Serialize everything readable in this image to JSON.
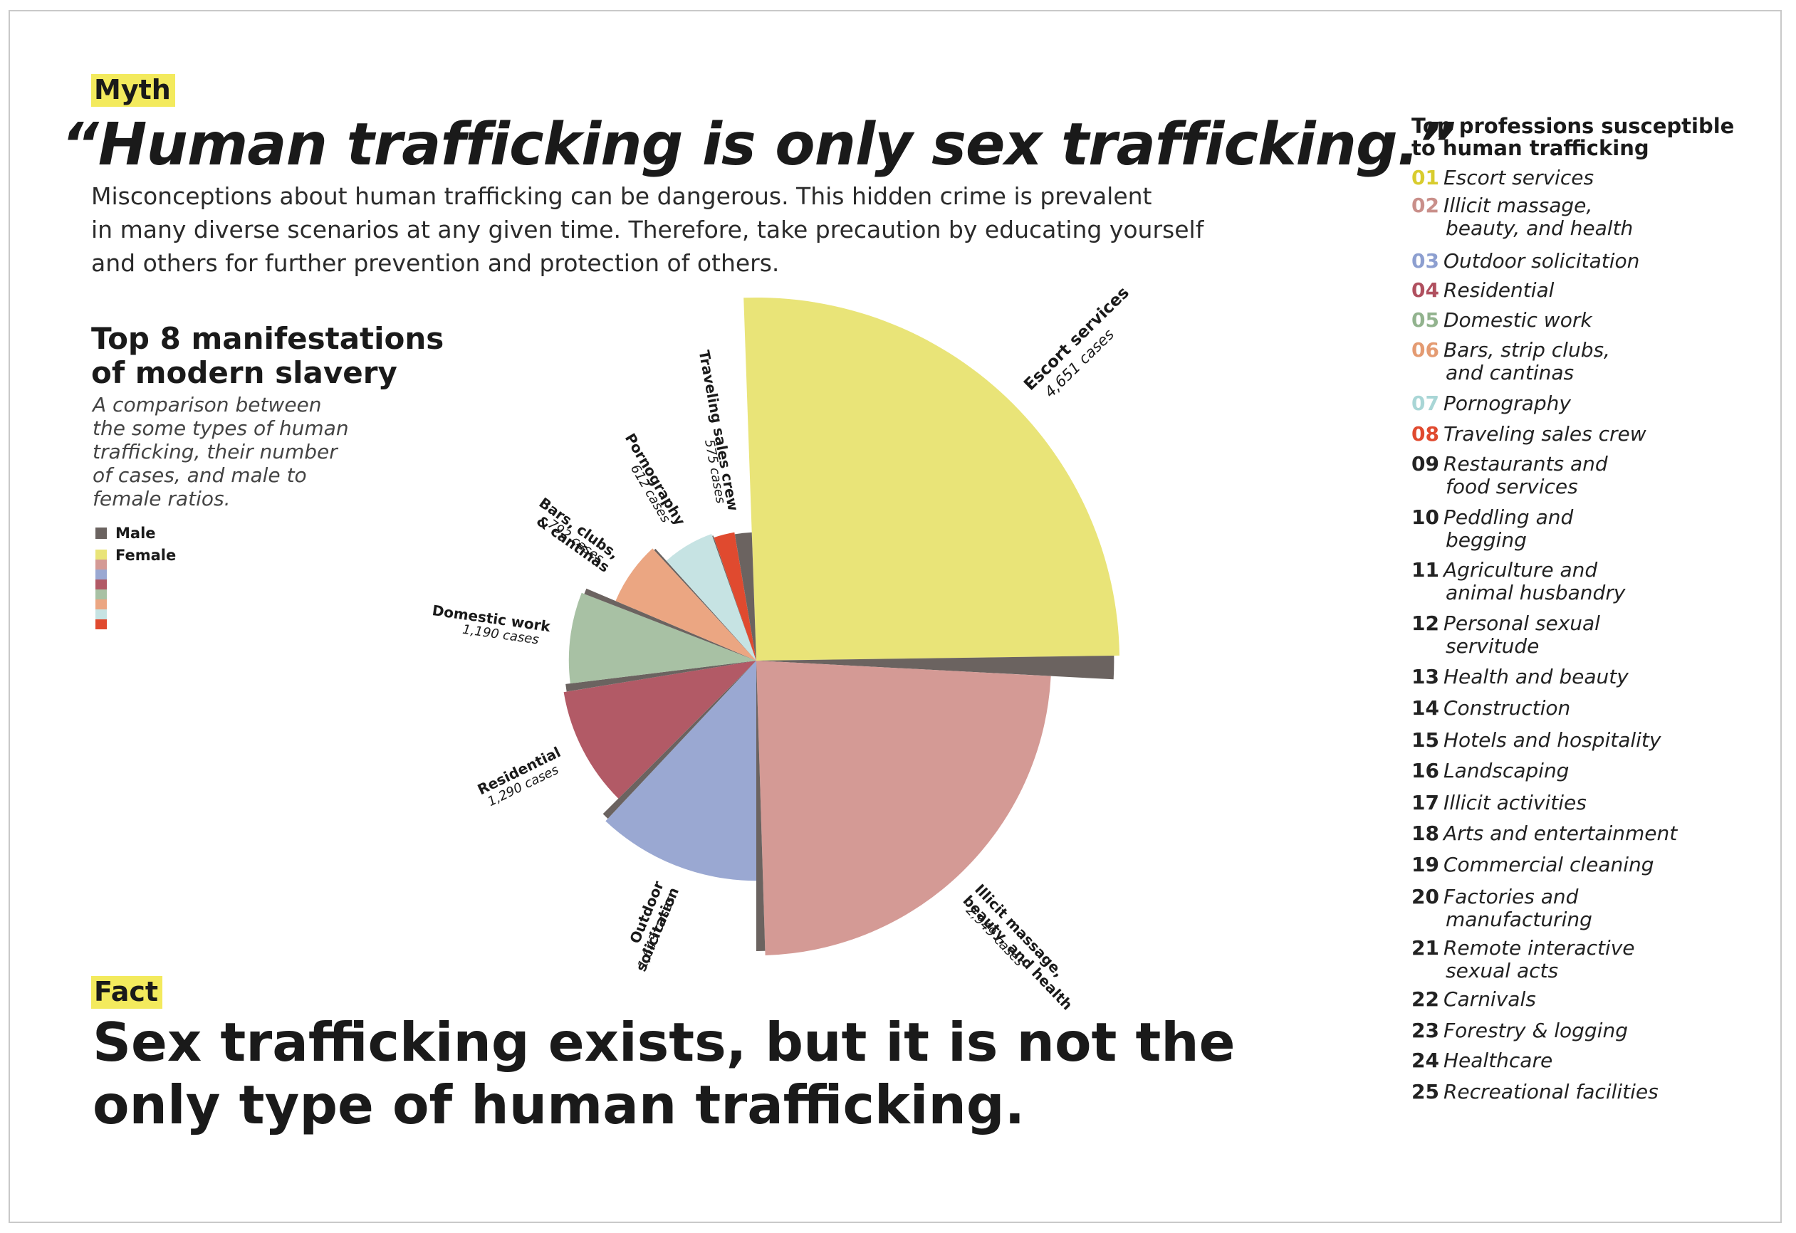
{
  "myth_label": "Myth",
  "headline": "“Human trafficking is only sex trafficking.”",
  "intro_lines": [
    "Misconceptions about human trafficking can be dangerous. This hidden crime is prevalent",
    "in many diverse scenarios at any given time. Therefore, take precaution by educating yourself",
    "and others for further prevention and protection of others."
  ],
  "section_title_lines": [
    "Top 8 manifestations",
    "of modern slavery"
  ],
  "section_subtitle_lines": [
    "A comparison between",
    "the some types of human",
    "trafficking, their number",
    "of cases, and male to",
    "female ratios."
  ],
  "legend": {
    "male": "Male",
    "female": "Female"
  },
  "colors": {
    "male": "#6b6360",
    "highlight": "#f3ea5d",
    "categories": [
      "#e9e478",
      "#d49a95",
      "#9aa8d2",
      "#b25a66",
      "#a8c1a4",
      "#eba682",
      "#c6e3e3",
      "#e04a2f"
    ]
  },
  "fact_label": "Fact",
  "fact_lines": [
    "Sex trafficking exists, but it is not the",
    "only type of human trafficking."
  ],
  "professions_title_lines": [
    "Top professions susceptible",
    "to human trafficking"
  ],
  "professions": [
    {
      "num": "01",
      "lines": [
        "Escort services"
      ],
      "color": "#d8cc2e"
    },
    {
      "num": "02",
      "lines": [
        "Illicit massage,",
        "beauty, and health"
      ],
      "color": "#c98f8a"
    },
    {
      "num": "03",
      "lines": [
        "Outdoor solicitation"
      ],
      "color": "#8d9fd0"
    },
    {
      "num": "04",
      "lines": [
        "Residential"
      ],
      "color": "#b0505f"
    },
    {
      "num": "05",
      "lines": [
        "Domestic work"
      ],
      "color": "#92b38e"
    },
    {
      "num": "06",
      "lines": [
        "Bars, strip clubs,",
        "and cantinas"
      ],
      "color": "#e49b72"
    },
    {
      "num": "07",
      "lines": [
        "Pornography"
      ],
      "color": "#a9d6d6"
    },
    {
      "num": "08",
      "lines": [
        "Traveling sales crew"
      ],
      "color": "#e04a2f"
    },
    {
      "num": "09",
      "lines": [
        "Restaurants and",
        "food services"
      ],
      "color": "#222222"
    },
    {
      "num": "10",
      "lines": [
        "Peddling and",
        "begging"
      ],
      "color": "#222222"
    },
    {
      "num": "11",
      "lines": [
        "Agriculture and",
        "animal husbandry"
      ],
      "color": "#222222"
    },
    {
      "num": "12",
      "lines": [
        "Personal sexual",
        "servitude"
      ],
      "color": "#222222"
    },
    {
      "num": "13",
      "lines": [
        "Health and beauty"
      ],
      "color": "#222222"
    },
    {
      "num": "14",
      "lines": [
        "Construction"
      ],
      "color": "#222222"
    },
    {
      "num": "15",
      "lines": [
        "Hotels and hospitality"
      ],
      "color": "#222222"
    },
    {
      "num": "16",
      "lines": [
        "Landscaping"
      ],
      "color": "#222222"
    },
    {
      "num": "17",
      "lines": [
        "Illicit activities"
      ],
      "color": "#222222"
    },
    {
      "num": "18",
      "lines": [
        "Arts and entertainment"
      ],
      "color": "#222222"
    },
    {
      "num": "19",
      "lines": [
        "Commercial cleaning"
      ],
      "color": "#222222"
    },
    {
      "num": "20",
      "lines": [
        "Factories and",
        "manufacturing"
      ],
      "color": "#222222"
    },
    {
      "num": "21",
      "lines": [
        "Remote interactive",
        "sexual acts"
      ],
      "color": "#222222"
    },
    {
      "num": "22",
      "lines": [
        "Carnivals"
      ],
      "color": "#222222"
    },
    {
      "num": "23",
      "lines": [
        "Forestry & logging"
      ],
      "color": "#222222"
    },
    {
      "num": "24",
      "lines": [
        "Healthcare"
      ],
      "color": "#222222"
    },
    {
      "num": "25",
      "lines": [
        "Recreational facilities"
      ],
      "color": "#222222"
    }
  ],
  "chart_data": {
    "type": "pie",
    "variant": "polar-area (rose); radius scaled to case count, thin dark wedge = male share",
    "categories": [
      "Escort services",
      "Illicit massage, beauty, and health",
      "Outdoor solicitation",
      "Residential",
      "Domestic work",
      "Bars, clubs, & cantinas",
      "Pornography",
      "Traveling sales crew"
    ],
    "category_label_lines": [
      [
        "Escort services"
      ],
      [
        "Illicit massage,",
        "beauty, and health"
      ],
      [
        "Outdoor",
        "solicitation"
      ],
      [
        "Residential"
      ],
      [
        "Domestic work"
      ],
      [
        "Bars, clubs,",
        "& cantinas"
      ],
      [
        "Pornography"
      ],
      [
        "Traveling sales crew"
      ]
    ],
    "cases": [
      4651,
      2949,
      1643,
      1290,
      1190,
      792,
      612,
      575
    ],
    "case_labels": [
      "4,651 cases",
      "2,949 cases",
      "1,643 cases",
      "1,290 cases",
      "1,190 cases",
      "792 cases",
      "612 cases",
      "575 cases"
    ],
    "angle_degrees": [
      95,
      87,
      45,
      38,
      30,
      25,
      23,
      17
    ],
    "male_share_estimate": [
      0.04,
      0.02,
      0.04,
      0.06,
      0.06,
      0.03,
      0.02,
      0.45
    ],
    "series": [
      {
        "name": "Male"
      },
      {
        "name": "Female"
      }
    ]
  }
}
